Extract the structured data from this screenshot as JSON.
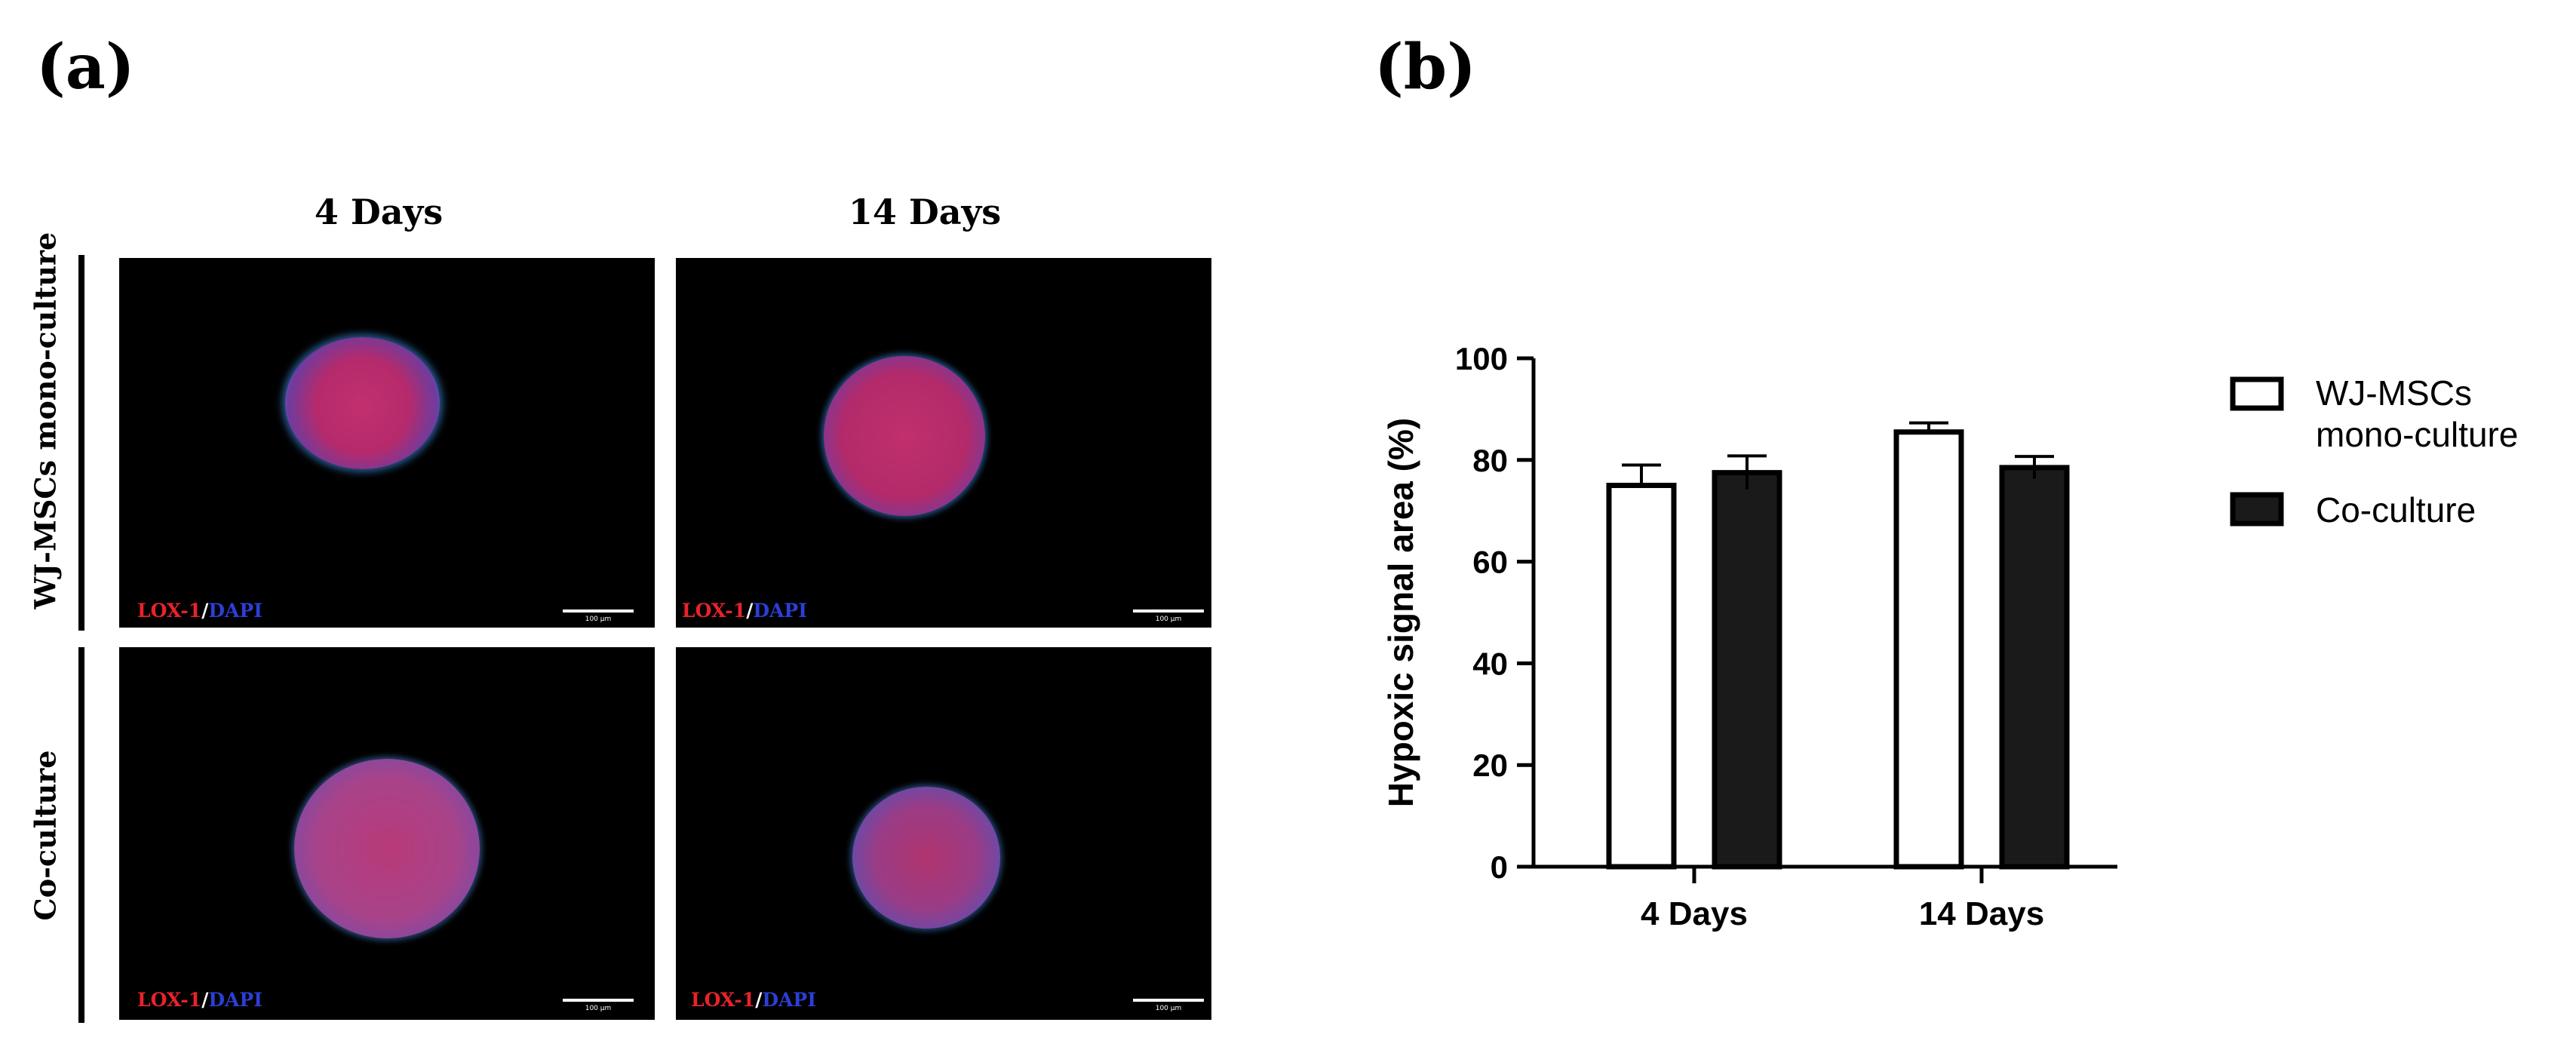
{
  "panels": {
    "a_label": "(a)",
    "b_label": "(b)"
  },
  "micrographs": {
    "col_headers": [
      "4 Days",
      "14 Days"
    ],
    "row_labels": [
      "WJ-MSCs mono-culture",
      "Co-culture"
    ],
    "stain": {
      "marker": "LOX-1",
      "separator": "/",
      "counterstain": "DAPI"
    },
    "scale_text": "100 µm",
    "colors": {
      "marker": "#e8232a",
      "counterstain": "#2b3fd6",
      "sphere_red": "#c2306e",
      "sphere_blue": "#3a8bdc"
    }
  },
  "chart_data": {
    "type": "bar",
    "categories": [
      "4 Days",
      "14 Days"
    ],
    "series": [
      {
        "name": "WJ-MSCs mono-culture",
        "values": [
          75,
          85.5
        ],
        "errors": [
          4,
          1.8
        ],
        "fill": "#ffffff"
      },
      {
        "name": "Co-culture",
        "values": [
          77.5,
          78.5
        ],
        "errors": [
          3.3,
          2.2
        ],
        "fill": "#1a1a1a"
      }
    ],
    "ylabel": "Hypoxic signal area (%)",
    "xlabel": "",
    "ylim": [
      0,
      100
    ],
    "yticks": [
      0,
      20,
      40,
      60,
      80,
      100
    ],
    "legend": {
      "position": "right",
      "entries": [
        "WJ-MSCs",
        "mono-culture",
        "Co-culture"
      ]
    },
    "grid": false
  }
}
